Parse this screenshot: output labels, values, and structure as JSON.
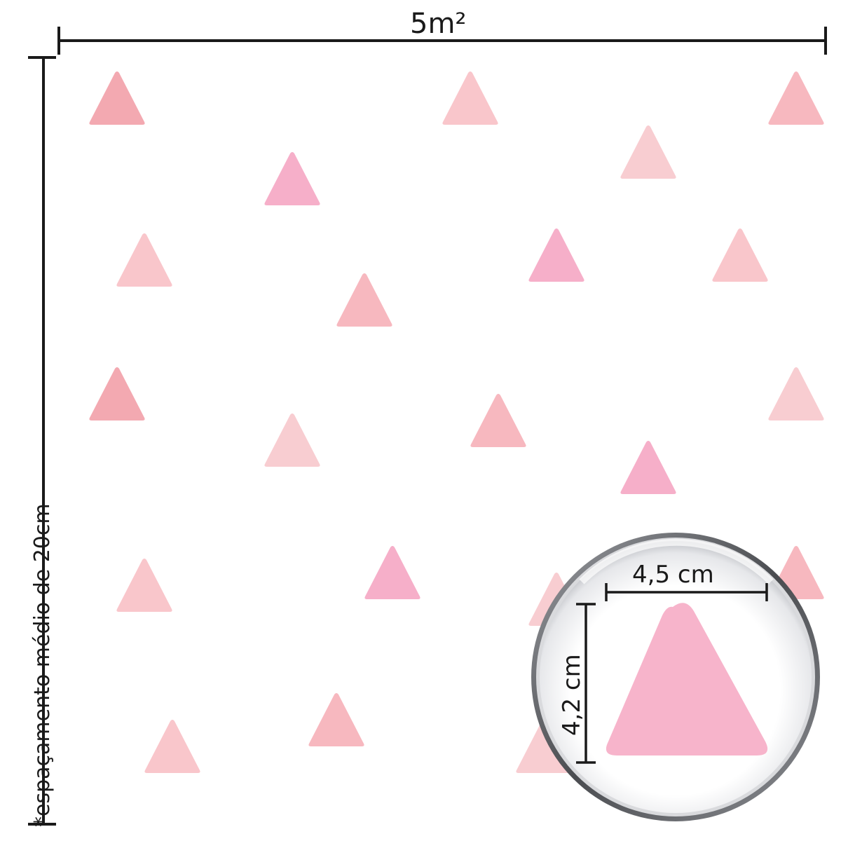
{
  "labels": {
    "width": "5m²",
    "spacing_note": "*espaçamento médio de 20cm",
    "zoom_width": "4,5 cm",
    "zoom_height": "4,2 cm"
  },
  "colors": {
    "line": "#1a1a1a",
    "pink_1": "#f3a9b1",
    "pink_2": "#f7b8bf",
    "pink_3": "#f9c6cb",
    "pink_4": "#f6afc9",
    "pink_5": "#f8cdd1",
    "zoom_triangle": "#f7b4cb"
  },
  "pattern": {
    "triangle_count": 25
  }
}
